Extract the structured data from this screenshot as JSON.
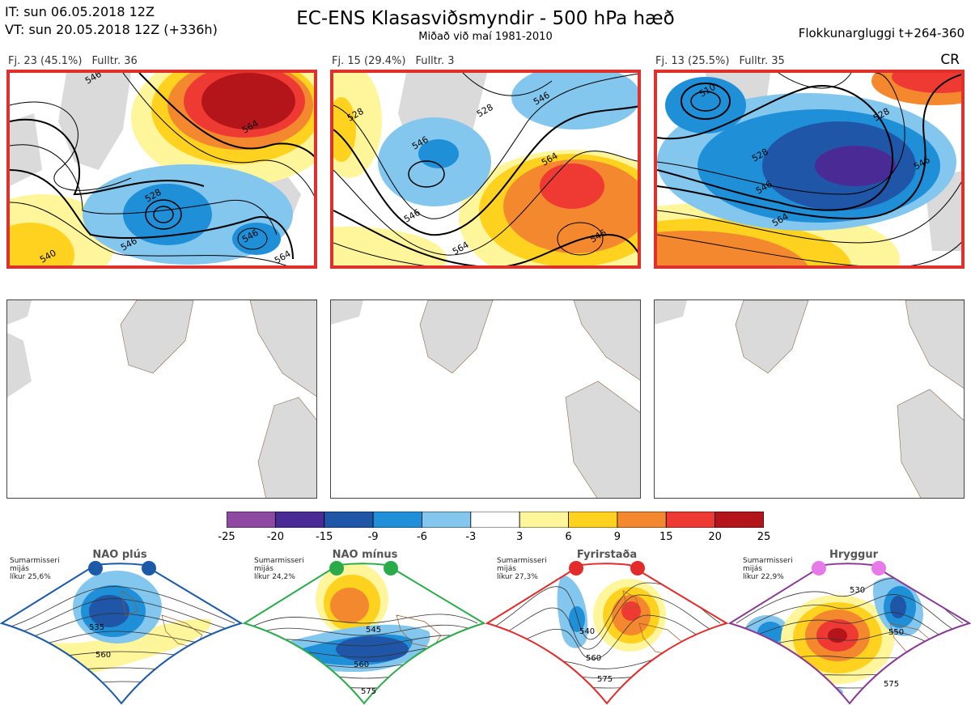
{
  "header": {
    "it_line": "IT: sun 06.05.2018 12Z",
    "vt_line": "VT: sun 20.05.2018 12Z  (+336h)",
    "title": "EC-ENS Klasasviðsmyndir - 500 hPa hæð",
    "subtitle": "Miðað við maí 1981-2010",
    "window": "Flokkunargluggi t+264-360",
    "cr": "CR"
  },
  "panels": [
    {
      "cluster": "Fj. 23 (45.1%)",
      "representative": "Fulltr. 36",
      "contour_labels": [
        "546",
        "564",
        "528",
        "546",
        "546",
        "564",
        "540"
      ]
    },
    {
      "cluster": "Fj. 15 (29.4%)",
      "representative": "Fulltr. 3",
      "contour_labels": [
        "528",
        "546",
        "528",
        "546",
        "564",
        "546",
        "564",
        "546"
      ]
    },
    {
      "cluster": "Fj. 13 (25.5%)",
      "representative": "Fulltr. 35",
      "contour_labels": [
        "510",
        "528",
        "546",
        "564",
        "528",
        "546"
      ]
    }
  ],
  "colorbar": {
    "ticks": [
      "-25",
      "-20",
      "-15",
      "-9",
      "-6",
      "-3",
      "3",
      "6",
      "9",
      "15",
      "20",
      "25"
    ],
    "colors": [
      "#8e4aa3",
      "#4a2b96",
      "#1f56a8",
      "#1f8fd8",
      "#83c6ee",
      "#ffffff",
      "#fff59a",
      "#ffd21f",
      "#f4882e",
      "#ef3a33",
      "#b3151b"
    ]
  },
  "regimes": [
    {
      "name": "NAO plús",
      "caption": [
        "Sumarmisseri",
        "mijás",
        "líkur 25,6%"
      ],
      "color": "#1a5aa8",
      "labels": [
        "535",
        "560"
      ]
    },
    {
      "name": "NAO mínus",
      "caption": [
        "Sumarmisseri",
        "mijás",
        "líkur 24,2%"
      ],
      "color": "#2aab4a",
      "labels": [
        "545",
        "560",
        "575"
      ]
    },
    {
      "name": "Fyrirstaða",
      "caption": [
        "Sumarmisseri",
        "mijás",
        "líkur 27,3%"
      ],
      "color": "#e32b2b",
      "labels": [
        "540",
        "560",
        "575"
      ]
    },
    {
      "name": "Hryggur",
      "caption": [
        "Sumarmisseri",
        "mijás",
        "líkur 22,9%"
      ],
      "color": "#e57ae8",
      "labels": [
        "530",
        "550",
        "575"
      ]
    }
  ]
}
